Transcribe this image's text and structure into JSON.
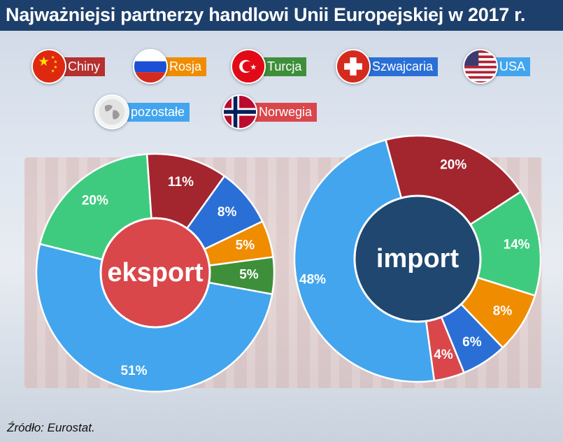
{
  "title": "Najważniejsi partnerzy handlowi Unii Europejskiej w 2017 r.",
  "source": "Źródło: Eurostat.",
  "legend": [
    {
      "label": "Chiny",
      "color": "#b5302f",
      "icon": "china-flag-icon"
    },
    {
      "label": "Rosja",
      "color": "#f08c00",
      "icon": "russia-flag-icon"
    },
    {
      "label": "Turcja",
      "color": "#3e8f3a",
      "icon": "turkey-flag-icon"
    },
    {
      "label": "Szwajcaria",
      "color": "#2a6fd6",
      "icon": "switzerland-flag-icon"
    },
    {
      "label": "USA",
      "color": "#42a5ee",
      "icon": "usa-flag-icon"
    },
    {
      "label": "pozostałe",
      "color": "#42a5ee",
      "icon": "globe-icon"
    },
    {
      "label": "Norwegia",
      "color": "#d9474b",
      "icon": "norway-flag-icon"
    }
  ],
  "chart_data": [
    {
      "type": "pie",
      "title": "eksport",
      "center_color": "#d9474b",
      "slices": [
        {
          "partner": "USA",
          "value": 20,
          "label": "20%",
          "color": "#3fcb7f"
        },
        {
          "partner": "Chiny",
          "value": 11,
          "label": "11%",
          "color": "#a3252e"
        },
        {
          "partner": "Szwajcaria",
          "value": 8,
          "label": "8%",
          "color": "#2a6fd6"
        },
        {
          "partner": "Rosja",
          "value": 5,
          "label": "5%",
          "color": "#f08c00"
        },
        {
          "partner": "Turcja",
          "value": 5,
          "label": "5%",
          "color": "#3e8f3a"
        },
        {
          "partner": "pozostałe",
          "value": 51,
          "label": "51%",
          "color": "#42a5ee"
        }
      ]
    },
    {
      "type": "pie",
      "title": "import",
      "center_color": "#1f476f",
      "slices": [
        {
          "partner": "Chiny",
          "value": 20,
          "label": "20%",
          "color": "#a3252e"
        },
        {
          "partner": "USA",
          "value": 14,
          "label": "14%",
          "color": "#3fcb7f"
        },
        {
          "partner": "Rosja",
          "value": 8,
          "label": "8%",
          "color": "#f08c00"
        },
        {
          "partner": "Szwajcaria",
          "value": 6,
          "label": "6%",
          "color": "#2a6fd6"
        },
        {
          "partner": "Norwegia",
          "value": 4,
          "label": "4%",
          "color": "#d9474b"
        },
        {
          "partner": "pozostałe",
          "value": 48,
          "label": "48%",
          "color": "#42a5ee"
        }
      ]
    }
  ]
}
